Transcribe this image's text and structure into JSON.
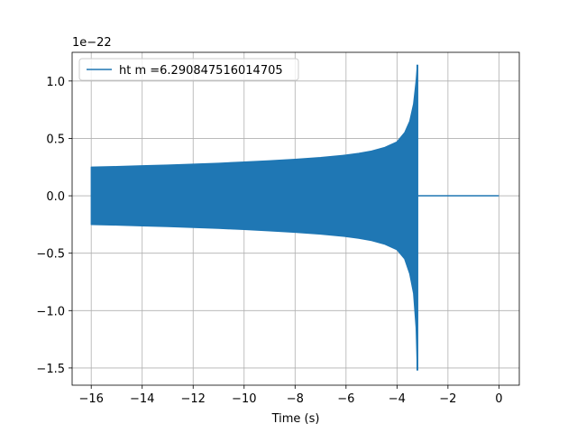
{
  "chart_data": {
    "type": "line",
    "xlabel": "Time (s)",
    "ylabel": "",
    "y_offset_text": "1e−22",
    "xlim": [
      -16.75,
      0.8
    ],
    "ylim": [
      -1.65,
      1.25
    ],
    "x_ticks": [
      -16,
      -14,
      -12,
      -10,
      -8,
      -6,
      -4,
      -2,
      0
    ],
    "x_tick_labels": [
      "−16",
      "−14",
      "−12",
      "−10",
      "−8",
      "−6",
      "−4",
      "−2",
      "0"
    ],
    "y_ticks": [
      -1.5,
      -1.0,
      -0.5,
      0.0,
      0.5,
      1.0
    ],
    "y_tick_labels": [
      "−1.5",
      "−1.0",
      "−0.5",
      "0.0",
      "0.5",
      "1.0"
    ],
    "grid": true,
    "legend_position": "top-left",
    "series": [
      {
        "name": "ht m =6.290847516014705",
        "color": "#1f77b4",
        "envelope_upper": [
          [
            -16.0,
            0.25
          ],
          [
            -15.0,
            0.255
          ],
          [
            -14.0,
            0.262
          ],
          [
            -13.0,
            0.268
          ],
          [
            -12.0,
            0.276
          ],
          [
            -11.0,
            0.284
          ],
          [
            -10.0,
            0.294
          ],
          [
            -9.0,
            0.305
          ],
          [
            -8.0,
            0.318
          ],
          [
            -7.0,
            0.334
          ],
          [
            -6.0,
            0.355
          ],
          [
            -5.5,
            0.37
          ],
          [
            -5.0,
            0.39
          ],
          [
            -4.5,
            0.42
          ],
          [
            -4.0,
            0.47
          ],
          [
            -3.7,
            0.55
          ],
          [
            -3.5,
            0.65
          ],
          [
            -3.35,
            0.8
          ],
          [
            -3.25,
            1.0
          ],
          [
            -3.2,
            1.14
          ]
        ],
        "envelope_lower": [
          [
            -16.0,
            -0.25
          ],
          [
            -15.0,
            -0.255
          ],
          [
            -14.0,
            -0.262
          ],
          [
            -13.0,
            -0.268
          ],
          [
            -12.0,
            -0.276
          ],
          [
            -11.0,
            -0.284
          ],
          [
            -10.0,
            -0.294
          ],
          [
            -9.0,
            -0.305
          ],
          [
            -8.0,
            -0.318
          ],
          [
            -7.0,
            -0.334
          ],
          [
            -6.0,
            -0.355
          ],
          [
            -5.5,
            -0.37
          ],
          [
            -5.0,
            -0.39
          ],
          [
            -4.5,
            -0.42
          ],
          [
            -4.0,
            -0.47
          ],
          [
            -3.7,
            -0.55
          ],
          [
            -3.5,
            -0.68
          ],
          [
            -3.35,
            -0.85
          ],
          [
            -3.25,
            -1.15
          ],
          [
            -3.2,
            -1.52
          ]
        ],
        "ringdown": [
          [
            -3.2,
            0.0
          ],
          [
            0.0,
            0.0
          ]
        ]
      }
    ]
  }
}
